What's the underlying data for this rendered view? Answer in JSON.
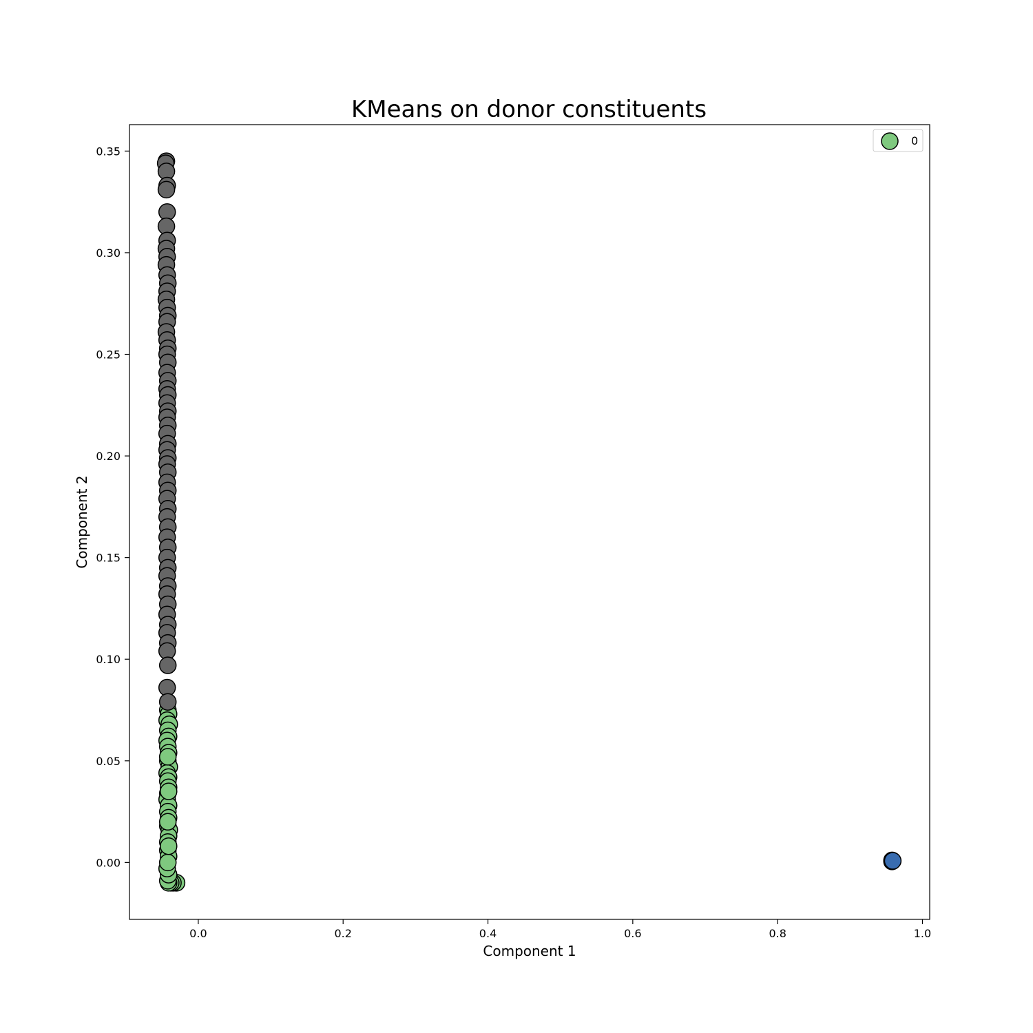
{
  "chart_data": {
    "type": "scatter",
    "title": "KMeans on donor constituents",
    "xlabel": "Component 1",
    "ylabel": "Component 2",
    "xlim": [
      -0.095,
      1.01
    ],
    "ylim": [
      -0.028,
      0.363
    ],
    "xticks": [
      0.0,
      0.2,
      0.4,
      0.6,
      0.8,
      1.0
    ],
    "xtick_labels": [
      "0.0",
      "0.2",
      "0.4",
      "0.6",
      "0.8",
      "1.0"
    ],
    "yticks": [
      0.0,
      0.05,
      0.1,
      0.15,
      0.2,
      0.25,
      0.3,
      0.35
    ],
    "ytick_labels": [
      "0.00",
      "0.05",
      "0.10",
      "0.15",
      "0.20",
      "0.25",
      "0.30",
      "0.35"
    ],
    "grid": false,
    "legend": {
      "position": "top-right",
      "entries": [
        {
          "label": "0",
          "color": "#7fc97f"
        }
      ]
    },
    "series": [
      {
        "color": "#7fc97f",
        "x": [
          -0.042,
          -0.041,
          -0.043,
          -0.04,
          -0.042,
          -0.041,
          -0.043,
          -0.042,
          -0.041,
          -0.042,
          -0.04,
          -0.043,
          -0.041,
          -0.042,
          -0.041,
          -0.042,
          -0.043,
          -0.041,
          -0.042,
          -0.041,
          -0.042,
          -0.04,
          -0.041,
          -0.042,
          -0.042,
          -0.041,
          -0.03,
          -0.035,
          -0.038,
          -0.041,
          -0.042,
          -0.041,
          -0.043,
          -0.042,
          -0.041,
          -0.042,
          -0.041,
          -0.042
        ],
        "y": [
          0.075,
          0.073,
          0.07,
          0.068,
          0.065,
          0.062,
          0.06,
          0.057,
          0.054,
          0.05,
          0.047,
          0.044,
          0.042,
          0.04,
          0.037,
          0.034,
          0.031,
          0.028,
          0.025,
          0.022,
          0.018,
          0.016,
          0.013,
          0.01,
          0.006,
          0.003,
          -0.01,
          -0.01,
          -0.01,
          -0.01,
          -0.009,
          -0.006,
          -0.003,
          0.0,
          0.008,
          0.02,
          0.035,
          0.052
        ]
      },
      {
        "color": "#666666",
        "x": [
          -0.044,
          -0.045,
          -0.044,
          -0.043,
          -0.044,
          -0.043,
          -0.044,
          -0.043,
          -0.044,
          -0.043,
          -0.044,
          -0.043,
          -0.042,
          -0.043,
          -0.044,
          -0.043,
          -0.042,
          -0.043,
          -0.044,
          -0.043,
          -0.042,
          -0.043,
          -0.042,
          -0.043,
          -0.042,
          -0.043,
          -0.042,
          -0.043,
          -0.042,
          -0.043,
          -0.042,
          -0.043,
          -0.042,
          -0.043,
          -0.042,
          -0.043,
          -0.042,
          -0.043,
          -0.042,
          -0.043,
          -0.042,
          -0.043,
          -0.042,
          -0.043,
          -0.042,
          -0.043,
          -0.042,
          -0.043,
          -0.042,
          -0.043,
          -0.042,
          -0.043,
          -0.042,
          -0.043,
          -0.042,
          -0.043,
          -0.042,
          -0.043,
          -0.042
        ],
        "y": [
          0.345,
          0.344,
          0.34,
          0.333,
          0.331,
          0.32,
          0.313,
          0.306,
          0.302,
          0.298,
          0.294,
          0.289,
          0.285,
          0.281,
          0.277,
          0.273,
          0.269,
          0.266,
          0.261,
          0.257,
          0.253,
          0.25,
          0.246,
          0.241,
          0.237,
          0.233,
          0.23,
          0.226,
          0.222,
          0.219,
          0.215,
          0.211,
          0.206,
          0.203,
          0.199,
          0.196,
          0.192,
          0.187,
          0.183,
          0.179,
          0.174,
          0.17,
          0.165,
          0.16,
          0.155,
          0.15,
          0.145,
          0.141,
          0.136,
          0.132,
          0.127,
          0.122,
          0.117,
          0.113,
          0.108,
          0.104,
          0.097,
          0.086,
          0.079
        ]
      },
      {
        "color": "#386cb0",
        "x": [
          0.958,
          0.958,
          0.959
        ],
        "y": [
          0.001,
          0.0005,
          0.0008
        ]
      }
    ]
  }
}
